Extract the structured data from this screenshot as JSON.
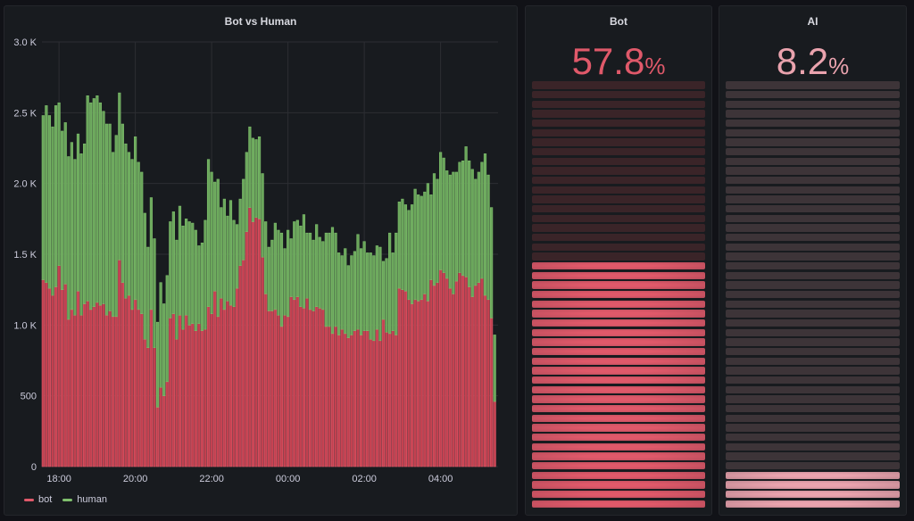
{
  "colors": {
    "background": "#111217",
    "panel": "#181b1f",
    "bot": "#e0596a",
    "human": "#7fbf6d",
    "ai": "#eaa3ae"
  },
  "panels": {
    "bot_gauge": {
      "title": "Bot",
      "value": "57.8",
      "unit": "%",
      "fraction": 0.578,
      "color": "#e0596a",
      "off_color": "#3a2428"
    },
    "ai_gauge": {
      "title": "AI",
      "value": "8.2",
      "unit": "%",
      "fraction": 0.082,
      "color": "#eaa3ae",
      "off_color": "#3d3438"
    }
  },
  "chart_data": {
    "type": "bar",
    "stacked": true,
    "title": "Bot vs Human",
    "xlabel": "",
    "ylabel": "",
    "ylim": [
      0,
      3000
    ],
    "yticks": [
      "0",
      "500",
      "1.0 K",
      "1.5 K",
      "2.0 K",
      "2.5 K",
      "3.0 K"
    ],
    "ytick_values": [
      0,
      500,
      1000,
      1500,
      2000,
      2500,
      3000
    ],
    "xticks": [
      "18:00",
      "20:00",
      "22:00",
      "00:00",
      "02:00",
      "04:00"
    ],
    "grid": true,
    "legend": "bottom-left",
    "x": [
      "17:35",
      "17:40",
      "17:45",
      "17:50",
      "17:55",
      "18:00",
      "18:05",
      "18:10",
      "18:15",
      "18:20",
      "18:25",
      "18:30",
      "18:35",
      "18:40",
      "18:45",
      "18:50",
      "18:55",
      "19:00",
      "19:05",
      "19:10",
      "19:15",
      "19:20",
      "19:25",
      "19:30",
      "19:35",
      "19:40",
      "19:45",
      "19:50",
      "19:55",
      "20:00",
      "20:05",
      "20:10",
      "20:15",
      "20:20",
      "20:25",
      "20:30",
      "20:35",
      "20:40",
      "20:45",
      "20:50",
      "20:55",
      "21:00",
      "21:05",
      "21:10",
      "21:15",
      "21:20",
      "21:25",
      "21:30",
      "21:35",
      "21:40",
      "21:45",
      "21:50",
      "21:55",
      "22:00",
      "22:05",
      "22:10",
      "22:15",
      "22:20",
      "22:25",
      "22:30",
      "22:35",
      "22:40",
      "22:45",
      "22:50",
      "22:55",
      "23:00",
      "23:05",
      "23:10",
      "23:15",
      "23:20",
      "23:25",
      "23:30",
      "23:35",
      "23:40",
      "23:45",
      "23:50",
      "23:55",
      "00:00",
      "00:05",
      "00:10",
      "00:15",
      "00:20",
      "00:25",
      "00:30",
      "00:35",
      "00:40",
      "00:45",
      "00:50",
      "00:55",
      "01:00",
      "01:05",
      "01:10",
      "01:15",
      "01:20",
      "01:25",
      "01:30",
      "01:35",
      "01:40",
      "01:45",
      "01:50",
      "01:55",
      "02:00",
      "02:05",
      "02:10",
      "02:15",
      "02:20",
      "02:25",
      "02:30",
      "02:35",
      "02:40",
      "02:45",
      "02:50",
      "02:55",
      "03:00",
      "03:05",
      "03:10",
      "03:15",
      "03:20",
      "03:25",
      "03:30",
      "03:35",
      "03:40",
      "03:45",
      "03:50",
      "03:55",
      "04:00",
      "04:05",
      "04:10",
      "04:15",
      "04:20",
      "04:25",
      "04:30",
      "04:35",
      "04:40",
      "04:45",
      "04:50",
      "04:55",
      "05:00",
      "05:05",
      "05:10",
      "05:15",
      "05:20",
      "05:25"
    ],
    "series": [
      {
        "name": "bot",
        "color": "#e0596a",
        "values": [
          1320,
          1300,
          1260,
          1210,
          1270,
          1420,
          1250,
          1290,
          1040,
          1110,
          1070,
          1240,
          1070,
          1150,
          1170,
          1110,
          1130,
          1160,
          1140,
          1150,
          1070,
          1100,
          1060,
          1060,
          1460,
          1300,
          1190,
          1210,
          1110,
          1180,
          1110,
          1080,
          900,
          840,
          1110,
          840,
          420,
          560,
          500,
          600,
          1050,
          1080,
          900,
          1070,
          970,
          1070,
          1000,
          1010,
          960,
          1010,
          960,
          970,
          1130,
          1080,
          1240,
          1060,
          1190,
          1110,
          1170,
          1140,
          1130,
          1260,
          1420,
          1460,
          1660,
          1830,
          1730,
          1760,
          1750,
          1480,
          1220,
          1100,
          1100,
          1110,
          1070,
          990,
          1070,
          1060,
          1200,
          1180,
          1200,
          1130,
          1120,
          1190,
          1110,
          1100,
          1130,
          1120,
          1110,
          990,
          990,
          940,
          990,
          930,
          970,
          940,
          910,
          930,
          960,
          970,
          930,
          960,
          960,
          900,
          890,
          970,
          890,
          1040,
          950,
          940,
          960,
          930,
          1260,
          1250,
          1240,
          1180,
          1150,
          1180,
          1170,
          1180,
          1220,
          1170,
          1320,
          1280,
          1300,
          1390,
          1370,
          1330,
          1260,
          1220,
          1310,
          1370,
          1350,
          1340,
          1270,
          1200,
          1280,
          1300,
          1330,
          1210,
          1180,
          1050,
          460
        ]
      },
      {
        "name": "human",
        "color": "#7fbf6d",
        "values": [
          1160,
          1250,
          1220,
          1190,
          1280,
          1150,
          1120,
          1140,
          1150,
          1180,
          1100,
          1110,
          1140,
          1130,
          1450,
          1460,
          1470,
          1460,
          1430,
          1360,
          1350,
          1320,
          1160,
          1280,
          1180,
          1120,
          1090,
          1010,
          1060,
          1150,
          1040,
          1000,
          890,
          710,
          790,
          770,
          600,
          740,
          650,
          750,
          680,
          720,
          700,
          770,
          730,
          680,
          730,
          710,
          710,
          550,
          620,
          770,
          1040,
          1000,
          770,
          970,
          640,
          780,
          600,
          740,
          610,
          450,
          470,
          570,
          560,
          570,
          590,
          550,
          580,
          590,
          510,
          450,
          500,
          610,
          600,
          660,
          470,
          610,
          410,
          550,
          540,
          570,
          660,
          460,
          540,
          500,
          580,
          500,
          480,
          660,
          660,
          750,
          660,
          580,
          520,
          600,
          510,
          560,
          560,
          670,
          610,
          630,
          550,
          610,
          600,
          590,
          660,
          410,
          520,
          710,
          550,
          720,
          610,
          640,
          610,
          630,
          700,
          780,
          750,
          730,
          720,
          830,
          600,
          790,
          730,
          830,
          810,
          760,
          800,
          860,
          770,
          780,
          810,
          920,
          890,
          900,
          750,
          780,
          820,
          1000,
          880,
          780,
          470
        ]
      }
    ]
  }
}
